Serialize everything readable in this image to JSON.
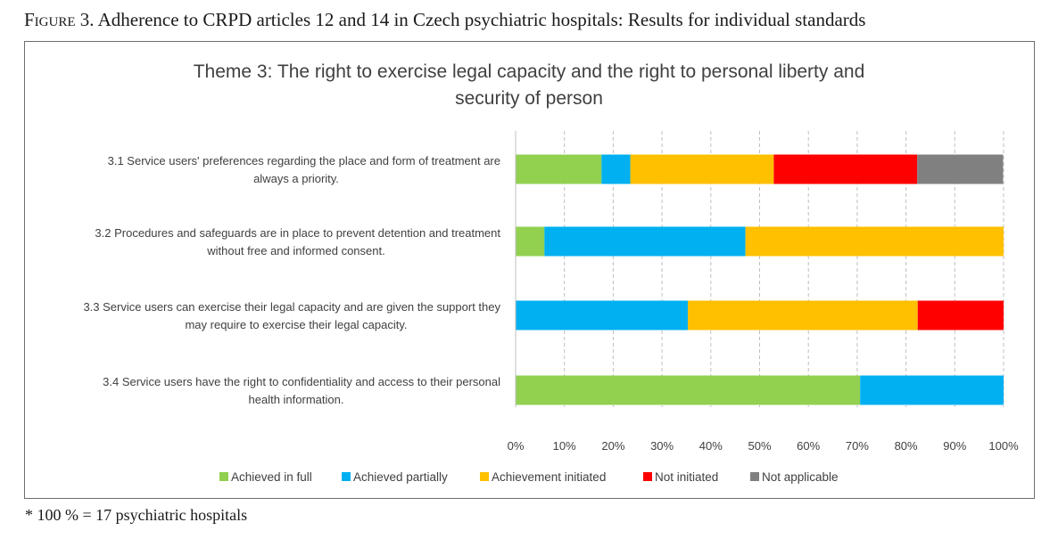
{
  "figure": {
    "label": "Figure",
    "caption": "3. Adherence to CRPD articles 12 and 14 in Czech psychiatric hospitals: Results for individual standards",
    "footnote": "* 100 % = 17 psychiatric hospitals"
  },
  "chart_data": {
    "type": "bar",
    "orientation": "horizontal",
    "stacked": true,
    "percent": true,
    "title_lines": [
      "Theme 3: The right to exercise legal capacity and the right to personal liberty and",
      "security of person"
    ],
    "categories": [
      [
        "3.1 Service users' preferences regarding the place and form of treatment are",
        "always a priority."
      ],
      [
        "3.2 Procedures and safeguards are in place to prevent detention and treatment",
        "without free and informed consent."
      ],
      [
        "3.3 Service users can exercise their legal capacity and are given the support they",
        "may require to exercise their legal capacity."
      ],
      [
        "3.4 Service users have the right to confidentiality and access to their personal",
        "health information."
      ]
    ],
    "series": [
      {
        "name": "Achieved in full",
        "color": "#92d050",
        "values": [
          17.6,
          5.9,
          0,
          70.6
        ]
      },
      {
        "name": "Achieved partially",
        "color": "#00b0f0",
        "values": [
          5.9,
          41.2,
          35.3,
          29.4
        ]
      },
      {
        "name": "Achievement initiated",
        "color": "#ffc000",
        "values": [
          29.4,
          52.9,
          47.1,
          0
        ]
      },
      {
        "name": "Not initiated",
        "color": "#ff0000",
        "values": [
          29.4,
          0,
          17.6,
          0
        ]
      },
      {
        "name": "Not applicable",
        "color": "#808080",
        "values": [
          17.6,
          0,
          0,
          0
        ]
      }
    ],
    "xlim": [
      0,
      100
    ],
    "xticks": [
      "0%",
      "10%",
      "20%",
      "30%",
      "40%",
      "50%",
      "60%",
      "70%",
      "80%",
      "90%",
      "100%"
    ],
    "grid": "vertical-dashed",
    "legend_position": "bottom"
  }
}
